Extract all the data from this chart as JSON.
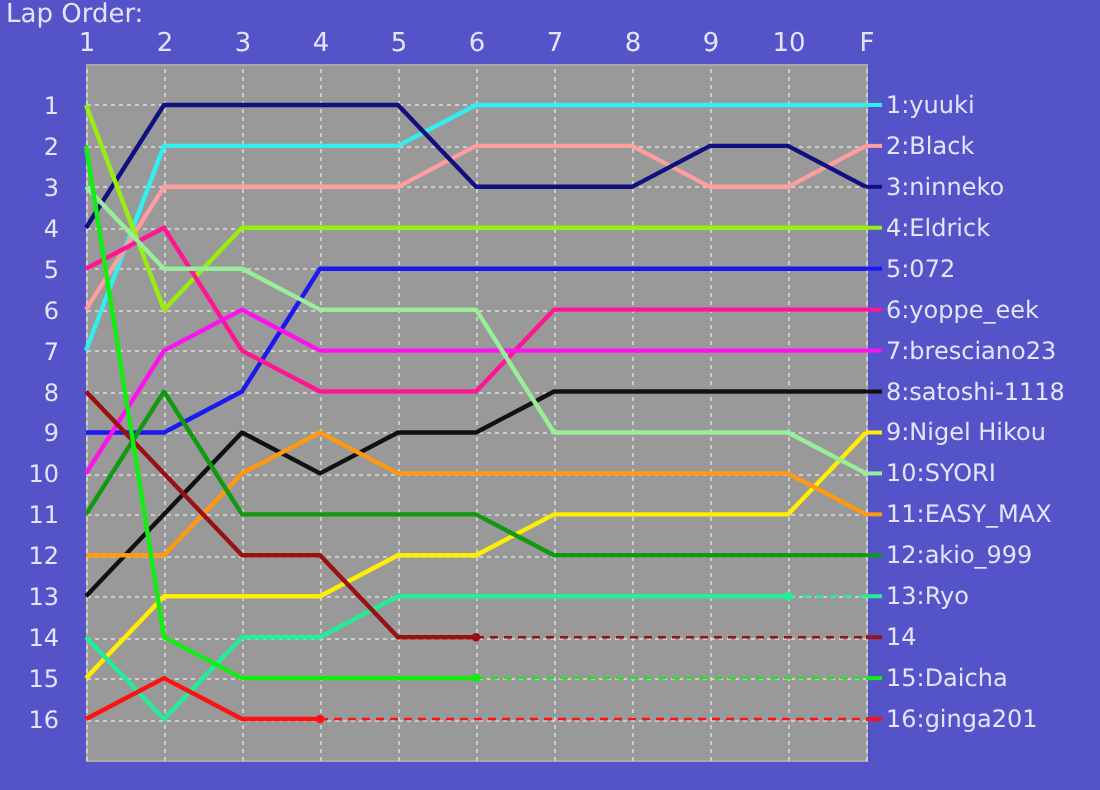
{
  "chart_data": {
    "type": "line",
    "title": "Lap Order:",
    "categories": [
      "1",
      "2",
      "3",
      "4",
      "5",
      "6",
      "7",
      "8",
      "9",
      "10",
      "F"
    ],
    "ylim": [
      17,
      0
    ],
    "yticks": [
      1,
      2,
      3,
      4,
      5,
      6,
      7,
      8,
      9,
      10,
      11,
      12,
      13,
      14,
      15,
      16
    ],
    "grid": true,
    "legend": "right",
    "marker": "none",
    "line_style": "solid",
    "series": [
      {
        "name": "1:yuuki",
        "color": "#33eeee",
        "values": [
          7,
          2,
          2,
          2,
          2,
          1,
          1,
          1,
          1,
          1,
          1
        ]
      },
      {
        "name": "2:Black",
        "color": "#ff9e9e",
        "values": [
          6,
          3,
          3,
          3,
          3,
          2,
          2,
          2,
          3,
          3,
          2
        ]
      },
      {
        "name": "3:ninneko",
        "color": "#10107e",
        "values": [
          4,
          1,
          1,
          1,
          1,
          3,
          3,
          3,
          2,
          2,
          3
        ]
      },
      {
        "name": "4:Eldrick",
        "color": "#99ee11",
        "values": [
          1,
          6,
          4,
          4,
          4,
          4,
          4,
          4,
          4,
          4,
          4
        ]
      },
      {
        "name": "5:072",
        "color": "#1a1aee",
        "values": [
          9,
          9,
          8,
          5,
          5,
          5,
          5,
          5,
          5,
          5,
          5
        ]
      },
      {
        "name": "6:yoppe_eek",
        "color": "#ff1493",
        "values": [
          5,
          4,
          7,
          8,
          8,
          8,
          6,
          6,
          6,
          6,
          6
        ]
      },
      {
        "name": "7:bresciano23",
        "color": "#ff11ee",
        "values": [
          10,
          7,
          6,
          7,
          7,
          7,
          7,
          7,
          7,
          7,
          7
        ]
      },
      {
        "name": "8:satoshi-1118",
        "color": "#111111",
        "values": [
          13,
          11,
          9,
          10,
          9,
          9,
          8,
          8,
          8,
          8,
          8
        ]
      },
      {
        "name": "9:Nigel Hikou",
        "color": "#ffee00",
        "values": [
          15,
          13,
          13,
          13,
          12,
          12,
          11,
          11,
          11,
          11,
          9
        ]
      },
      {
        "name": "10:SYORI",
        "color": "#99ee99",
        "values": [
          3,
          5,
          5,
          6,
          6,
          6,
          9,
          9,
          9,
          9,
          10
        ]
      },
      {
        "name": "11:EASY_MAX",
        "color": "#ff9911",
        "values": [
          12,
          12,
          10,
          9,
          10,
          10,
          10,
          10,
          10,
          10,
          11
        ]
      },
      {
        "name": "12:akio_999",
        "color": "#119911",
        "values": [
          11,
          8,
          11,
          11,
          11,
          11,
          12,
          12,
          12,
          12,
          12
        ]
      },
      {
        "name": "13:Ryo",
        "color": "#22ee99",
        "values": [
          14,
          16,
          14,
          14,
          13,
          13,
          13,
          13,
          13,
          13,
          null
        ]
      },
      {
        "name": "14",
        "color": "#991111",
        "values": [
          8,
          10,
          12,
          12,
          14,
          14,
          null,
          null,
          null,
          null,
          null
        ]
      },
      {
        "name": "15:Daicha",
        "color": "#11ee11",
        "values": [
          2,
          14,
          15,
          15,
          15,
          15,
          null,
          null,
          null,
          null,
          null
        ]
      },
      {
        "name": "16:ginga201",
        "color": "#ff1111",
        "values": [
          16,
          15,
          16,
          16,
          null,
          null,
          null,
          null,
          null,
          null,
          null
        ]
      }
    ]
  }
}
